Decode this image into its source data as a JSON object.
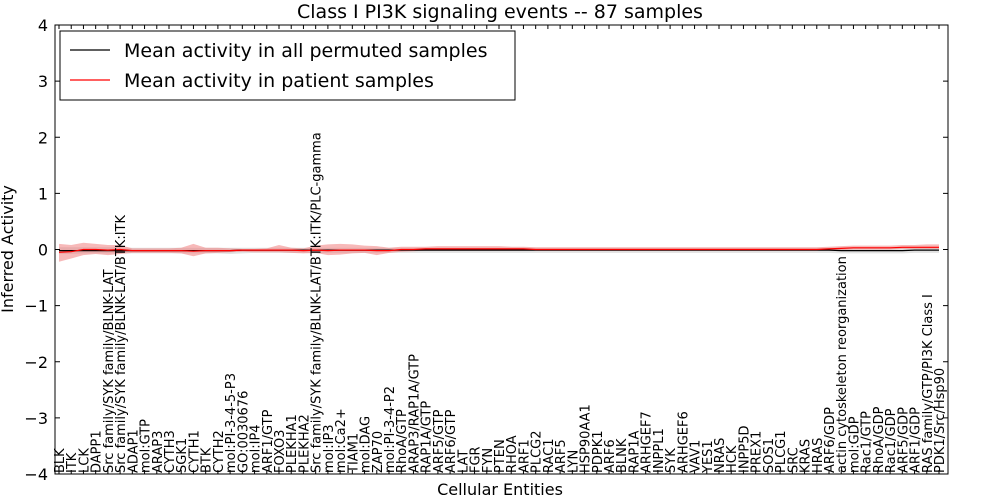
{
  "chart_data": {
    "type": "line",
    "title": "Class I PI3K signaling events -- 87 samples",
    "xlabel": "Cellular Entities",
    "ylabel": "Inferred Activity",
    "ylim": [
      -4,
      4
    ],
    "yticks": [
      -4,
      -3,
      -2,
      -1,
      0,
      1,
      2,
      3,
      4
    ],
    "ytick_labels": [
      "−4",
      "−3",
      "−2",
      "−1",
      "0",
      "1",
      "2",
      "3",
      "4"
    ],
    "legend_position": "top-left",
    "grid": false,
    "categories": [
      "BLK",
      "ITK",
      "LCK",
      "DAPP1",
      "Src family/SYK family/BLNK-LAT",
      "Src family/SYK family/BLNK-LAT/BTK:ITK",
      "ADAP1",
      "mol:GTP",
      "ARAP3",
      "CYTH3",
      "SGK1",
      "CYTH1",
      "BTK",
      "CYTH2",
      "mol:PI-3-4-5-P3",
      "GO:0030676",
      "mol:IP4",
      "ARF1/GTP",
      "FOXO3",
      "PLEKHA1",
      "PLEKHA2",
      "Src family/SYK family/BLNK-LAT/BTK:ITK/PLC-gamma",
      "mol:IP3",
      "mol:Ca2+",
      "TIAM1",
      "mol:DAG",
      "ZAP70",
      "mol:PI-3-4-P2",
      "RhoA/GTP",
      "ARAP3/RAP1A/GTP",
      "RAP1A/GTP",
      "ARF5/GTP",
      "ARF6/GTP",
      "LAT",
      "FGR",
      "FYN",
      "PTEN",
      "RHOA",
      "ARF1",
      "PLCG2",
      "RAC1",
      "ARF5",
      "LYN",
      "HSP90AA1",
      "PDPK1",
      "ARF6",
      "BLNK",
      "RAP1A",
      "ARHGEF7",
      "INPPL1",
      "SYK",
      "ARHGEF6",
      "VAV1",
      "YES1",
      "NRAS",
      "HCK",
      "INPP5D",
      "PREX1",
      "SOS1",
      "PLCG1",
      "SRC",
      "KRAS",
      "HRAS",
      "ARF6/GDP",
      "actin cytoskeleton reorganization",
      "mol:GDP",
      "Rac1/GTP",
      "RhoA/GDP",
      "Rac1/GDP",
      "ARF5/GDP",
      "ARF1/GDP",
      "RAS family/GTP/PI3K Class I",
      "PDK1/Src/Hsp90"
    ],
    "series": [
      {
        "name": "Mean activity in all permuted samples",
        "color": "#000000",
        "band_color": "#c8c8c8",
        "values": [
          -0.02,
          -0.02,
          -0.02,
          -0.02,
          -0.02,
          -0.02,
          -0.02,
          -0.02,
          -0.02,
          -0.02,
          -0.02,
          -0.02,
          -0.02,
          -0.02,
          -0.02,
          -0.01,
          -0.01,
          -0.01,
          -0.01,
          -0.01,
          -0.01,
          -0.01,
          -0.01,
          -0.01,
          -0.01,
          -0.01,
          -0.01,
          -0.01,
          -0.01,
          -0.01,
          -0.01,
          -0.01,
          -0.01,
          -0.01,
          -0.01,
          -0.01,
          -0.01,
          -0.01,
          -0.01,
          -0.01,
          -0.01,
          -0.01,
          -0.01,
          -0.01,
          -0.01,
          -0.01,
          -0.01,
          -0.01,
          -0.01,
          -0.01,
          -0.01,
          -0.01,
          -0.01,
          -0.01,
          -0.01,
          -0.01,
          -0.01,
          -0.01,
          -0.01,
          -0.01,
          -0.01,
          -0.01,
          -0.01,
          -0.01,
          -0.02,
          -0.02,
          -0.02,
          -0.02,
          -0.02,
          -0.02,
          -0.01,
          -0.01,
          -0.01
        ],
        "lower": [
          -0.08,
          -0.08,
          -0.07,
          -0.07,
          -0.07,
          -0.07,
          -0.07,
          -0.07,
          -0.07,
          -0.07,
          -0.07,
          -0.07,
          -0.07,
          -0.07,
          -0.08,
          -0.07,
          -0.06,
          -0.06,
          -0.06,
          -0.06,
          -0.06,
          -0.07,
          -0.06,
          -0.06,
          -0.06,
          -0.06,
          -0.06,
          -0.06,
          -0.06,
          -0.06,
          -0.06,
          -0.06,
          -0.06,
          -0.06,
          -0.06,
          -0.06,
          -0.06,
          -0.06,
          -0.06,
          -0.06,
          -0.06,
          -0.06,
          -0.06,
          -0.06,
          -0.06,
          -0.06,
          -0.06,
          -0.06,
          -0.06,
          -0.06,
          -0.06,
          -0.06,
          -0.06,
          -0.06,
          -0.06,
          -0.06,
          -0.06,
          -0.06,
          -0.06,
          -0.06,
          -0.06,
          -0.06,
          -0.06,
          -0.06,
          -0.07,
          -0.07,
          -0.07,
          -0.07,
          -0.07,
          -0.07,
          -0.06,
          -0.06,
          -0.06
        ],
        "upper": [
          0.04,
          0.04,
          0.04,
          0.04,
          0.04,
          0.04,
          0.03,
          0.03,
          0.03,
          0.03,
          0.03,
          0.03,
          0.03,
          0.03,
          0.03,
          0.03,
          0.03,
          0.03,
          0.03,
          0.03,
          0.03,
          0.03,
          0.03,
          0.03,
          0.03,
          0.03,
          0.03,
          0.03,
          0.03,
          0.03,
          0.03,
          0.03,
          0.03,
          0.03,
          0.03,
          0.03,
          0.03,
          0.03,
          0.03,
          0.03,
          0.03,
          0.03,
          0.03,
          0.03,
          0.03,
          0.03,
          0.03,
          0.03,
          0.03,
          0.03,
          0.03,
          0.03,
          0.03,
          0.03,
          0.03,
          0.03,
          0.03,
          0.03,
          0.03,
          0.03,
          0.03,
          0.03,
          0.03,
          0.03,
          0.03,
          0.03,
          0.03,
          0.03,
          0.03,
          0.03,
          0.03,
          0.03,
          0.03
        ]
      },
      {
        "name": "Mean activity in patient samples",
        "color": "#ff0000",
        "band_color": "#f08080",
        "values": [
          -0.05,
          -0.04,
          0.0,
          0.0,
          -0.01,
          0.0,
          -0.02,
          -0.02,
          -0.02,
          -0.02,
          -0.02,
          -0.03,
          -0.02,
          -0.02,
          -0.02,
          -0.01,
          -0.01,
          -0.01,
          -0.01,
          -0.01,
          -0.02,
          -0.01,
          -0.02,
          -0.01,
          -0.01,
          -0.01,
          -0.02,
          -0.02,
          0.0,
          0.0,
          0.01,
          0.01,
          0.01,
          0.01,
          0.01,
          0.01,
          0.01,
          0.01,
          0.01,
          0.0,
          0.0,
          0.0,
          0.0,
          0.0,
          0.0,
          0.0,
          0.0,
          0.0,
          0.0,
          0.0,
          0.0,
          0.0,
          0.0,
          0.0,
          0.0,
          0.0,
          0.0,
          0.0,
          0.0,
          0.0,
          0.0,
          0.0,
          0.0,
          0.01,
          0.02,
          0.03,
          0.03,
          0.03,
          0.03,
          0.04,
          0.04,
          0.04,
          0.04
        ],
        "lower": [
          -0.22,
          -0.16,
          -0.1,
          -0.08,
          -0.1,
          -0.08,
          -0.06,
          -0.06,
          -0.06,
          -0.06,
          -0.07,
          -0.12,
          -0.07,
          -0.06,
          -0.05,
          -0.04,
          -0.05,
          -0.05,
          -0.05,
          -0.06,
          -0.07,
          -0.06,
          -0.1,
          -0.09,
          -0.07,
          -0.06,
          -0.1,
          -0.06,
          -0.04,
          -0.03,
          -0.02,
          -0.02,
          -0.02,
          -0.02,
          -0.02,
          -0.02,
          -0.02,
          -0.02,
          -0.02,
          -0.02,
          -0.02,
          -0.02,
          -0.02,
          -0.02,
          -0.02,
          -0.02,
          -0.02,
          -0.02,
          -0.02,
          -0.02,
          -0.02,
          -0.02,
          -0.02,
          -0.02,
          -0.02,
          -0.02,
          -0.02,
          -0.02,
          -0.02,
          -0.02,
          -0.02,
          -0.02,
          -0.02,
          -0.02,
          -0.01,
          0.0,
          0.0,
          0.0,
          0.0,
          0.01,
          0.01,
          0.01,
          0.01
        ],
        "upper": [
          0.1,
          0.08,
          0.12,
          0.1,
          0.08,
          0.08,
          0.02,
          0.02,
          0.02,
          0.02,
          0.03,
          0.1,
          0.03,
          0.03,
          0.02,
          0.01,
          0.01,
          0.02,
          0.08,
          0.03,
          0.02,
          0.07,
          0.09,
          0.1,
          0.09,
          0.07,
          0.06,
          0.03,
          0.05,
          0.05,
          0.05,
          0.06,
          0.06,
          0.06,
          0.06,
          0.06,
          0.06,
          0.05,
          0.05,
          0.04,
          0.04,
          0.04,
          0.04,
          0.04,
          0.04,
          0.04,
          0.04,
          0.04,
          0.04,
          0.04,
          0.04,
          0.04,
          0.04,
          0.04,
          0.04,
          0.04,
          0.04,
          0.04,
          0.04,
          0.04,
          0.04,
          0.04,
          0.04,
          0.05,
          0.06,
          0.07,
          0.07,
          0.07,
          0.07,
          0.08,
          0.08,
          0.09,
          0.09
        ]
      }
    ]
  }
}
